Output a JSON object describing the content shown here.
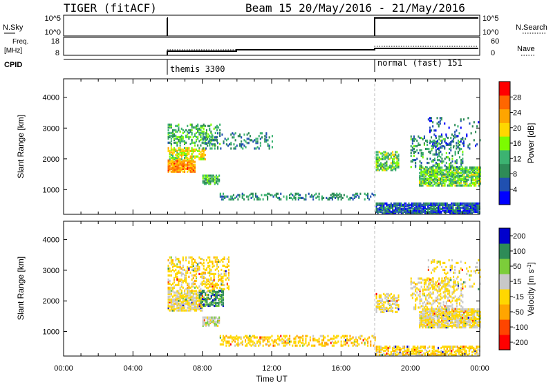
{
  "header": {
    "title": "TIGER (fitACF)",
    "subtitle": "Beam 15 20/May/2016 - 21/May/2016"
  },
  "summary_panels": {
    "nsky_label": "N.Sky",
    "nsky_ticks": [
      "10^5",
      "10^0"
    ],
    "nsky_right_ticks": [
      "10^5",
      "10^0"
    ],
    "nsearch_label": "N.Search",
    "freq_label_1": "Freq.",
    "freq_label_2": "[MHz]",
    "freq_ticks": [
      "18",
      "8"
    ],
    "nave_label": "Nave",
    "nave_ticks": [
      "60",
      "0"
    ],
    "cpid_label": "CPID",
    "cpid_segments": [
      {
        "label": "themis 3300",
        "start_hour": 6.0
      },
      {
        "label": "normal (fast) 151",
        "start_hour": 18.0
      }
    ]
  },
  "colors": {
    "power_scale": [
      "#0000ff",
      "#2050b0",
      "#2e8b57",
      "#3cb371",
      "#7cfc00",
      "#ffd700",
      "#ffa500",
      "#ff6600",
      "#ff0000"
    ],
    "velocity_scale": [
      "#0000cd",
      "#2e8b57",
      "#7ccd3a",
      "#c8c8c8",
      "#ffd700",
      "#ffa500",
      "#ff4500",
      "#ff0000"
    ]
  },
  "chart_data": [
    {
      "type": "heatmap",
      "name": "power",
      "ylabel": "Slant Range [km]",
      "yticks": [
        "4000",
        "3000",
        "2000",
        "1000"
      ],
      "ylim": [
        200,
        4600
      ],
      "xlim": [
        0,
        24
      ],
      "colorbar_label": "Power [dB]",
      "colorbar_ticks": [
        "28",
        "24",
        "20",
        "16",
        "12",
        "8",
        "4"
      ],
      "clim": [
        0,
        32
      ],
      "regions": [
        {
          "t0": 6.0,
          "t1": 7.6,
          "r0": 1550,
          "r1": 1950,
          "level": 24,
          "density": 0.85
        },
        {
          "t0": 6.0,
          "t1": 8.2,
          "r0": 1950,
          "r1": 2350,
          "level": 18,
          "density": 0.6
        },
        {
          "t0": 6.0,
          "t1": 9.0,
          "r0": 2400,
          "r1": 3100,
          "level": 12,
          "density": 0.35
        },
        {
          "t0": 8.0,
          "t1": 9.0,
          "r0": 1150,
          "r1": 1450,
          "level": 12,
          "density": 0.7
        },
        {
          "t0": 8.0,
          "t1": 12.0,
          "r0": 2300,
          "r1": 2800,
          "level": 9,
          "density": 0.2
        },
        {
          "t0": 9.0,
          "t1": 18.0,
          "r0": 650,
          "r1": 850,
          "level": 9,
          "density": 0.35
        },
        {
          "t0": 18.0,
          "t1": 19.3,
          "r0": 1600,
          "r1": 2200,
          "level": 14,
          "density": 0.55
        },
        {
          "t0": 18.0,
          "t1": 24.0,
          "r0": 200,
          "r1": 550,
          "level": 6,
          "density": 0.85
        },
        {
          "t0": 20.5,
          "t1": 24.0,
          "r0": 1100,
          "r1": 1700,
          "level": 14,
          "density": 0.75
        },
        {
          "t0": 20.0,
          "t1": 23.0,
          "r0": 1700,
          "r1": 2700,
          "level": 10,
          "density": 0.25
        },
        {
          "t0": 21.0,
          "t1": 24.0,
          "r0": 2300,
          "r1": 3300,
          "level": 6,
          "density": 0.12
        }
      ]
    },
    {
      "type": "heatmap",
      "name": "velocity",
      "ylabel": "Slant Range [km]",
      "yticks": [
        "4000",
        "3000",
        "2000",
        "1000"
      ],
      "ylim": [
        200,
        4600
      ],
      "xlim": [
        0,
        24
      ],
      "colorbar_label": "Velocity [m s^-1]",
      "colorbar_ticks": [
        "200",
        "100",
        "50",
        "15",
        "-15",
        "-50",
        "-100",
        "-200"
      ],
      "clim": [
        -250,
        250
      ],
      "regions": [
        {
          "t0": 6.0,
          "t1": 8.0,
          "r0": 1650,
          "r1": 2300,
          "level": 0,
          "density": 0.75
        },
        {
          "t0": 7.8,
          "t1": 9.2,
          "r0": 1800,
          "r1": 2300,
          "level": 150,
          "density": 0.55
        },
        {
          "t0": 6.0,
          "t1": 9.5,
          "r0": 2300,
          "r1": 3400,
          "level": -30,
          "density": 0.35
        },
        {
          "t0": 8.0,
          "t1": 9.0,
          "r0": 1150,
          "r1": 1450,
          "level": 40,
          "density": 0.7
        },
        {
          "t0": 9.0,
          "t1": 18.0,
          "r0": 500,
          "r1": 850,
          "level": -40,
          "density": 0.35
        },
        {
          "t0": 18.0,
          "t1": 19.3,
          "r0": 1600,
          "r1": 2200,
          "level": 0,
          "density": 0.55
        },
        {
          "t0": 18.0,
          "t1": 24.0,
          "r0": 200,
          "r1": 500,
          "level": -30,
          "density": 0.6
        },
        {
          "t0": 20.5,
          "t1": 24.0,
          "r0": 1100,
          "r1": 1700,
          "level": 0,
          "density": 0.8
        },
        {
          "t0": 20.0,
          "t1": 23.0,
          "r0": 1700,
          "r1": 2700,
          "level": 0,
          "density": 0.3
        },
        {
          "t0": 21.0,
          "t1": 24.0,
          "r0": 2300,
          "r1": 3300,
          "level": -20,
          "density": 0.15
        }
      ]
    }
  ],
  "x_axis": {
    "label": "Time UT",
    "ticks": [
      "00:00",
      "04:00",
      "08:00",
      "12:00",
      "16:00",
      "20:00",
      "00:00"
    ]
  }
}
